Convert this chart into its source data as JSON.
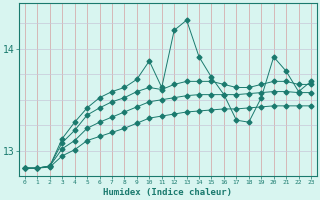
{
  "xlabel": "Humidex (Indice chaleur)",
  "ylabel": "",
  "x": [
    0,
    1,
    2,
    3,
    4,
    5,
    6,
    7,
    8,
    9,
    10,
    11,
    12,
    13,
    14,
    15,
    16,
    17,
    18,
    19,
    20,
    21,
    22,
    23
  ],
  "line1": [
    12.83,
    12.83,
    12.85,
    13.12,
    13.28,
    13.42,
    13.52,
    13.58,
    13.62,
    13.7,
    13.88,
    13.62,
    14.18,
    14.28,
    13.92,
    13.72,
    13.55,
    13.3,
    13.28,
    13.52,
    13.92,
    13.78,
    13.58,
    13.68
  ],
  "line2": [
    12.83,
    12.83,
    12.85,
    13.08,
    13.2,
    13.35,
    13.42,
    13.48,
    13.52,
    13.58,
    13.62,
    13.6,
    13.65,
    13.68,
    13.68,
    13.68,
    13.65,
    13.62,
    13.62,
    13.65,
    13.68,
    13.68,
    13.65,
    13.65
  ],
  "line3": [
    12.83,
    12.83,
    12.85,
    13.02,
    13.1,
    13.22,
    13.28,
    13.33,
    13.38,
    13.43,
    13.48,
    13.5,
    13.52,
    13.54,
    13.55,
    13.55,
    13.55,
    13.55,
    13.56,
    13.57,
    13.58,
    13.58,
    13.57,
    13.57
  ],
  "line4": [
    12.83,
    12.83,
    12.84,
    12.95,
    13.01,
    13.1,
    13.14,
    13.18,
    13.22,
    13.27,
    13.32,
    13.34,
    13.36,
    13.38,
    13.39,
    13.4,
    13.41,
    13.41,
    13.42,
    13.43,
    13.44,
    13.44,
    13.44,
    13.44
  ],
  "ylim": [
    12.75,
    14.45
  ],
  "yticks": [
    13.0,
    14.0
  ],
  "ytick_labels": [
    "13",
    "14"
  ],
  "xtick_labels": [
    "0",
    "1",
    "2",
    "3",
    "4",
    "5",
    "6",
    "7",
    "8",
    "9",
    "10",
    "11",
    "12",
    "13",
    "14",
    "15",
    "16",
    "17",
    "18",
    "19",
    "20",
    "21",
    "22",
    "23"
  ],
  "line_color": "#1a7a6e",
  "bg_color": "#d8f5f0",
  "grid_color_v": "#d4a0a0",
  "grid_color_h": "#c8c8d8",
  "tick_color": "#1a7a6e",
  "label_color": "#1a7a6e",
  "marker": "D",
  "marker_size": 2.5,
  "lw": 0.7
}
